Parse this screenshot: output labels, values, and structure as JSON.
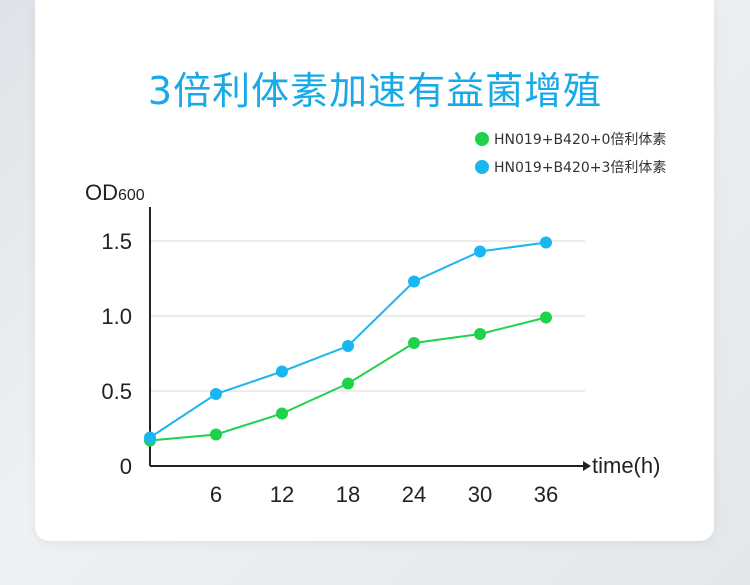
{
  "title": "3倍利体素加速有益菌增殖",
  "chart_data": {
    "type": "line",
    "x": [
      0,
      6,
      12,
      18,
      24,
      30,
      36
    ],
    "xticks": [
      "6",
      "12",
      "18",
      "24",
      "30",
      "36"
    ],
    "yticks": [
      "0",
      "0.5",
      "1.0",
      "1.5"
    ],
    "ytick_values": [
      0,
      0.5,
      1.0,
      1.5
    ],
    "xlabel": "time(h)",
    "ylabel_main": "OD",
    "ylabel_sub": "600",
    "xlim": [
      0,
      40
    ],
    "ylim": [
      0,
      1.5
    ],
    "grid": "horizontal",
    "legend_position": "top-right",
    "series": [
      {
        "name": "HN019+B420+0倍利体素",
        "color": "#1ed34b",
        "values": [
          0.17,
          0.21,
          0.35,
          0.55,
          0.82,
          0.88,
          0.99
        ]
      },
      {
        "name": "HN019+B420+3倍利体素",
        "color": "#1ab6f0",
        "values": [
          0.19,
          0.48,
          0.63,
          0.8,
          1.23,
          1.43,
          1.49
        ]
      }
    ]
  }
}
